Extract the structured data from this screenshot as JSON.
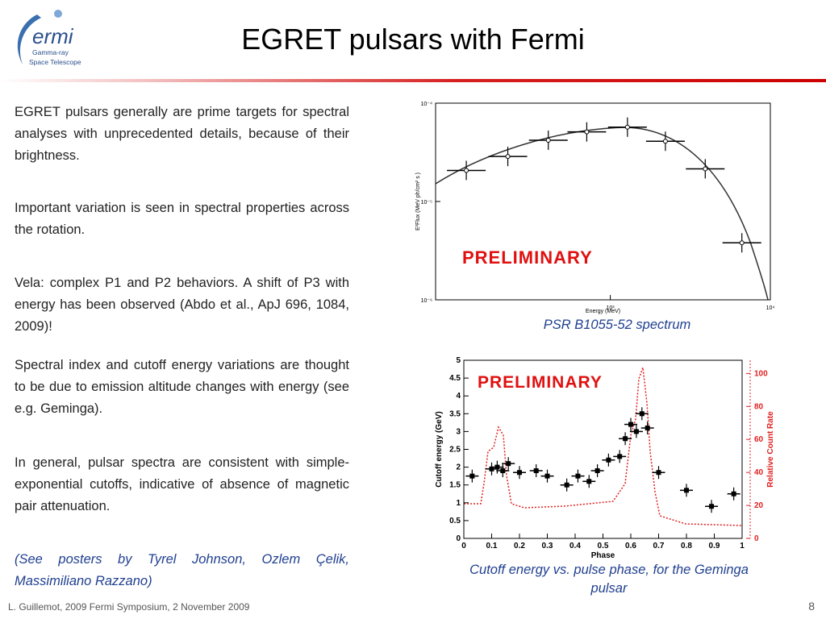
{
  "header": {
    "title": "EGRET pulsars with Fermi",
    "logo": {
      "name": "ermi",
      "line1": "Gamma-ray",
      "line2": "Space Telescope"
    }
  },
  "paragraphs": [
    "EGRET pulsars generally are prime targets for spectral analyses with unprecedented details, because of their brightness.",
    "Important variation is seen in spectral properties across the rotation.",
    "Vela: complex P1 and P2 behaviors. A shift of P3 with energy has been observed (Abdo et al., ApJ 696, 1084, 2009)!",
    "Spectral index and cutoff energy variations are thought to be due to emission altitude changes with energy (see e.g. Geminga).",
    "In general, pulsar spectra are consistent with simple-exponential cutoffs, indicative of absence of magnetic pair attenuation.",
    "(See posters by Tyrel Johnson, Ozlem Çelik, Massimiliano Razzano)"
  ],
  "figures": [
    {
      "caption": "PSR B1055-52 spectrum",
      "stamp": "PRELIMINARY",
      "x_label": "Energy (MeV)",
      "y_label": "E²Flux (MeV ph/cm² s )",
      "log": true,
      "xlim": [
        81,
        10000
      ],
      "ylim": [
        1e-06,
        0.0001
      ],
      "xticks": [
        {
          "value": 1000,
          "label": "10³"
        },
        {
          "value": 10000,
          "label": "10⁴"
        }
      ],
      "yticks": [
        {
          "value": 1e-06,
          "label": "10⁻⁶"
        },
        {
          "value": 1e-05,
          "label": "10⁻⁵"
        },
        {
          "value": 0.0001,
          "label": "10⁻⁴"
        }
      ],
      "x": [
        126,
        229,
        410,
        713,
        1280,
        2210,
        3920,
        6640
      ],
      "values": [
        2.07e-05,
        2.87e-05,
        4.2e-05,
        5.1e-05,
        5.7e-05,
        4.1e-05,
        2.15e-05,
        3.8e-06
      ]
    },
    {
      "caption": "Cutoff energy vs. pulse phase, for the Geminga pulsar",
      "stamp": "PRELIMINARY",
      "x_label": "Phase",
      "y_label": "Cutoff energy (GeV)",
      "y2_label": "Relative Count Rate",
      "log": false,
      "xlim": [
        0,
        1
      ],
      "ylim": [
        0,
        5
      ],
      "y2lim": [
        0,
        108
      ],
      "xticks": [
        0,
        0.1,
        0.2,
        0.3,
        0.4,
        0.5,
        0.6,
        0.7,
        0.8,
        0.9,
        1
      ],
      "yticks": [
        0,
        0.5,
        1,
        1.5,
        2,
        2.5,
        3,
        3.5,
        4,
        4.5,
        5
      ],
      "y2ticks": [
        0,
        20,
        40,
        60,
        80,
        100
      ],
      "x": [
        0.03,
        0.1,
        0.12,
        0.14,
        0.16,
        0.2,
        0.26,
        0.3,
        0.37,
        0.41,
        0.45,
        0.48,
        0.52,
        0.56,
        0.58,
        0.6,
        0.62,
        0.64,
        0.66,
        0.7,
        0.8,
        0.89,
        0.97
      ],
      "values": [
        1.75,
        1.95,
        2.0,
        1.9,
        2.1,
        1.85,
        1.9,
        1.75,
        1.5,
        1.75,
        1.6,
        1.9,
        2.2,
        2.3,
        2.8,
        3.2,
        3.0,
        3.5,
        3.1,
        1.85,
        1.35,
        0.9,
        1.25
      ]
    }
  ],
  "footer": {
    "text": "L. Guillemot, 2009 Fermi Symposium, 2 November 2009",
    "page": "8"
  }
}
